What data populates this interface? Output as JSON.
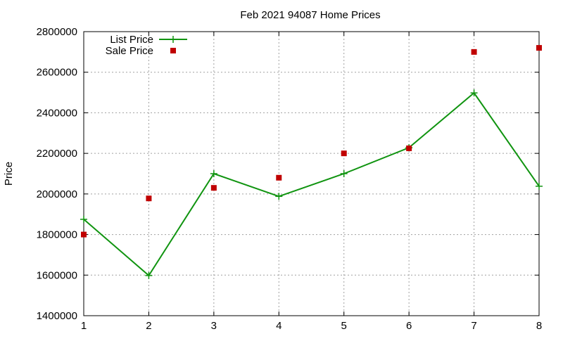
{
  "chart_data": {
    "type": "line",
    "title": "Feb 2021 94087 Home Prices",
    "xlabel": "",
    "ylabel": "Price",
    "x": [
      1,
      2,
      3,
      4,
      5,
      6,
      7,
      8
    ],
    "xlim": [
      1,
      8
    ],
    "ylim": [
      1400000,
      2800000
    ],
    "xticks": [
      1,
      2,
      3,
      4,
      5,
      6,
      7,
      8
    ],
    "yticks": [
      1400000,
      1600000,
      1800000,
      2000000,
      2200000,
      2400000,
      2600000,
      2800000
    ],
    "grid": true,
    "legend_position": "top-left",
    "series": [
      {
        "name": "List Price",
        "style": "line-plus",
        "color": "#109410",
        "values": [
          1875000,
          1598000,
          2100000,
          1988000,
          2100000,
          2228000,
          2498000,
          2038000
        ]
      },
      {
        "name": "Sale Price",
        "style": "square-points",
        "color": "#c00000",
        "values": [
          1800000,
          1978000,
          2030000,
          2080000,
          2200000,
          2225000,
          2700000,
          2720000
        ]
      }
    ]
  }
}
